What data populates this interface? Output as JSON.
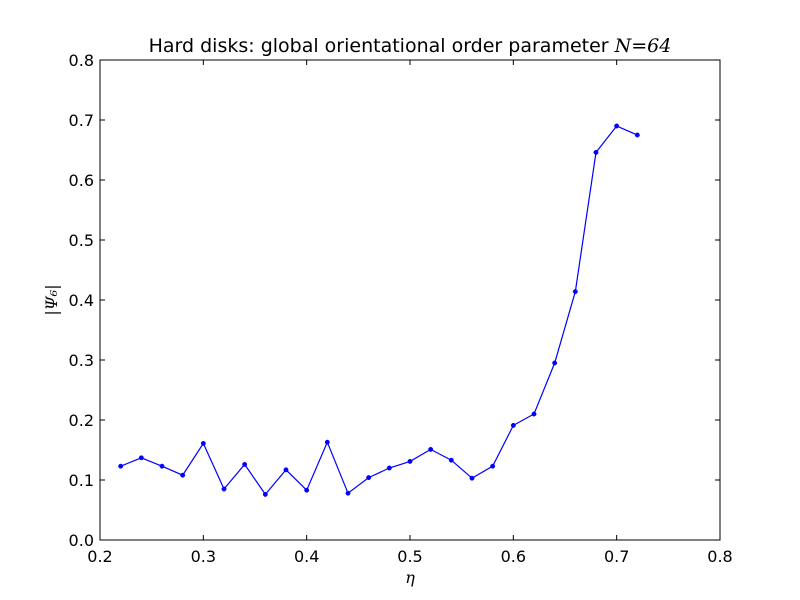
{
  "chart_data": {
    "type": "line",
    "title": "Hard disks: global orientational order parameter ",
    "title_math": "N=64",
    "xlabel": "η",
    "ylabel": "|Ψ₆|",
    "xlim": [
      0.2,
      0.8
    ],
    "ylim": [
      0.0,
      0.8
    ],
    "xticks": [
      "0.2",
      "0.3",
      "0.4",
      "0.5",
      "0.6",
      "0.7",
      "0.8"
    ],
    "yticks": [
      "0.0",
      "0.1",
      "0.2",
      "0.3",
      "0.4",
      "0.5",
      "0.6",
      "0.7",
      "0.8"
    ],
    "grid": false,
    "color": "#0000ff",
    "series": [
      {
        "x": [
          0.22,
          0.24,
          0.26,
          0.28,
          0.3,
          0.32,
          0.34,
          0.36,
          0.38,
          0.4,
          0.42,
          0.44,
          0.46,
          0.48,
          0.5,
          0.52,
          0.54,
          0.56,
          0.58,
          0.6,
          0.62,
          0.64,
          0.66,
          0.68,
          0.7,
          0.72
        ],
        "values": [
          0.123,
          0.137,
          0.123,
          0.108,
          0.161,
          0.085,
          0.126,
          0.076,
          0.117,
          0.083,
          0.163,
          0.078,
          0.104,
          0.12,
          0.131,
          0.151,
          0.133,
          0.103,
          0.123,
          0.191,
          0.21,
          0.295,
          0.414,
          0.646,
          0.69,
          0.675
        ]
      }
    ]
  }
}
